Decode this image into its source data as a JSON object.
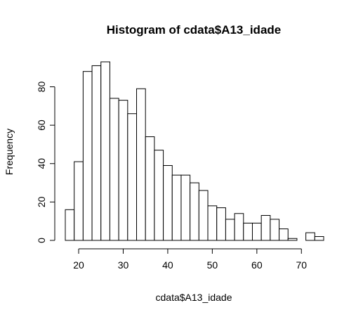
{
  "chart_data": {
    "type": "bar",
    "title": "Histogram of cdata$A13_idade",
    "xlabel": "cdata$A13_idade",
    "ylabel": "Frequency",
    "bin_width": 2,
    "bins": [
      {
        "x0": 17,
        "x1": 19,
        "count": 16
      },
      {
        "x0": 19,
        "x1": 21,
        "count": 41
      },
      {
        "x0": 21,
        "x1": 23,
        "count": 88
      },
      {
        "x0": 23,
        "x1": 25,
        "count": 91
      },
      {
        "x0": 25,
        "x1": 27,
        "count": 93
      },
      {
        "x0": 27,
        "x1": 29,
        "count": 74
      },
      {
        "x0": 29,
        "x1": 31,
        "count": 73
      },
      {
        "x0": 31,
        "x1": 33,
        "count": 66
      },
      {
        "x0": 33,
        "x1": 35,
        "count": 79
      },
      {
        "x0": 35,
        "x1": 37,
        "count": 54
      },
      {
        "x0": 37,
        "x1": 39,
        "count": 47
      },
      {
        "x0": 39,
        "x1": 41,
        "count": 39
      },
      {
        "x0": 41,
        "x1": 43,
        "count": 34
      },
      {
        "x0": 43,
        "x1": 45,
        "count": 34
      },
      {
        "x0": 45,
        "x1": 47,
        "count": 30
      },
      {
        "x0": 47,
        "x1": 49,
        "count": 26
      },
      {
        "x0": 49,
        "x1": 51,
        "count": 18
      },
      {
        "x0": 51,
        "x1": 53,
        "count": 17
      },
      {
        "x0": 53,
        "x1": 55,
        "count": 11
      },
      {
        "x0": 55,
        "x1": 57,
        "count": 14
      },
      {
        "x0": 57,
        "x1": 59,
        "count": 9
      },
      {
        "x0": 59,
        "x1": 61,
        "count": 9
      },
      {
        "x0": 61,
        "x1": 63,
        "count": 13
      },
      {
        "x0": 63,
        "x1": 65,
        "count": 11
      },
      {
        "x0": 65,
        "x1": 67,
        "count": 6
      },
      {
        "x0": 67,
        "x1": 69,
        "count": 1
      },
      {
        "x0": 69,
        "x1": 71,
        "count": 0
      },
      {
        "x0": 71,
        "x1": 73,
        "count": 4
      },
      {
        "x0": 73,
        "x1": 75,
        "count": 2
      }
    ],
    "xlim": [
      17,
      75
    ],
    "ylim": [
      0,
      93
    ],
    "x_ticks": [
      20,
      30,
      40,
      50,
      60,
      70
    ],
    "y_ticks": [
      0,
      20,
      40,
      60,
      80
    ],
    "grid": false,
    "colors": {
      "bar_fill": "#ffffff",
      "bar_stroke": "#000000"
    }
  }
}
